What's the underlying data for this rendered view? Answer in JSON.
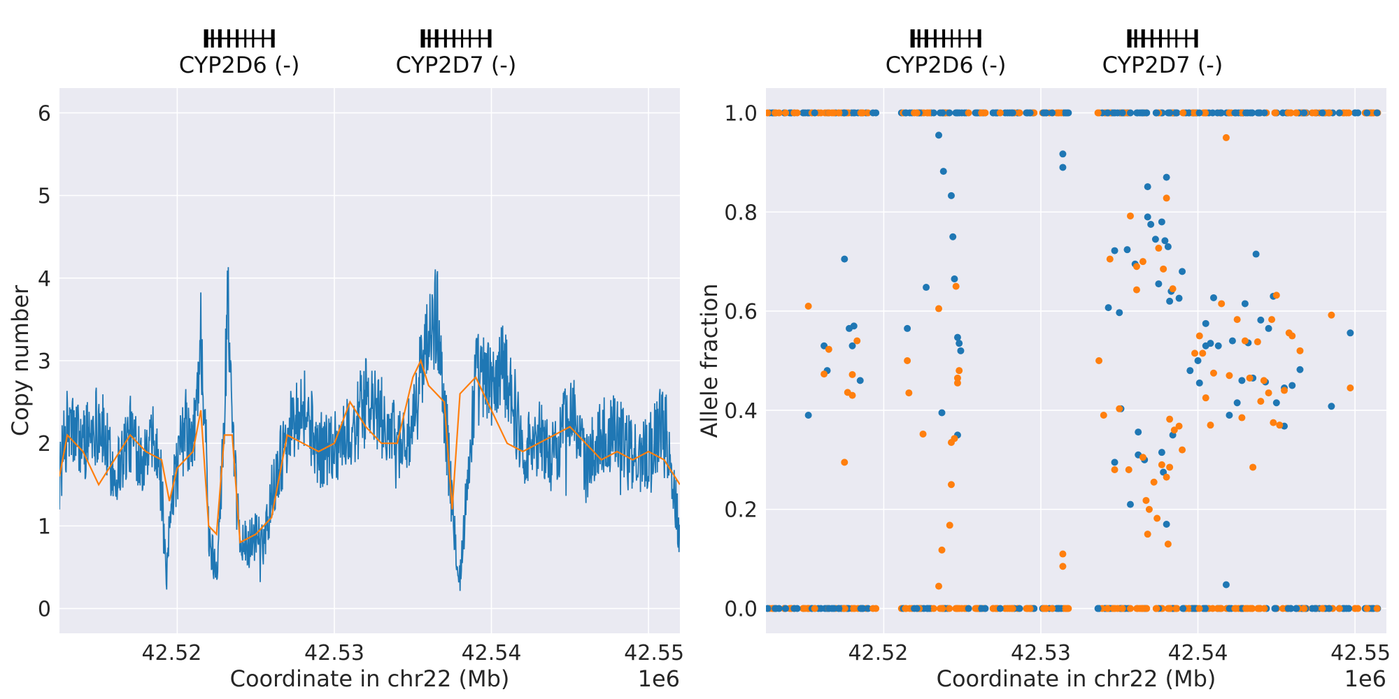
{
  "chart_data": [
    {
      "type": "line",
      "ylabel": "Copy number",
      "xlabel": "Coordinate in chr22 (Mb)",
      "offset_label": "1e6",
      "xlim": [
        42.5125,
        42.552
      ],
      "ylim": [
        -0.3,
        6.3
      ],
      "xticks": [
        42.52,
        42.53,
        42.54,
        42.55
      ],
      "xtick_labels": [
        "42.52",
        "42.53",
        "42.54",
        "42.55"
      ],
      "yticks": [
        0,
        1,
        2,
        3,
        4,
        5,
        6
      ],
      "ytick_labels": [
        "0",
        "1",
        "2",
        "3",
        "4",
        "5",
        "6"
      ],
      "grid": true,
      "genes": [
        {
          "name": "CYP2D6 (-)",
          "start": 42.5217,
          "end": 42.5262
        },
        {
          "name": "CYP2D7 (-)",
          "start": 42.5355,
          "end": 42.54
        }
      ],
      "series": [
        {
          "color": "#1f77b4",
          "x": [
            42.5125,
            42.513,
            42.514,
            42.515,
            42.516,
            42.517,
            42.518,
            42.5185,
            42.519,
            42.5193,
            42.5196,
            42.52,
            42.5205,
            42.521,
            42.5215,
            42.5218,
            42.522,
            42.5225,
            42.523,
            42.5232,
            42.5235,
            42.524,
            42.5245,
            42.525,
            42.5255,
            42.526,
            42.527,
            42.528,
            42.529,
            42.53,
            42.531,
            42.532,
            42.533,
            42.534,
            42.535,
            42.5355,
            42.536,
            42.5365,
            42.537,
            42.5375,
            42.538,
            42.539,
            42.54,
            42.541,
            42.542,
            42.543,
            42.544,
            42.545,
            42.546,
            42.547,
            42.548,
            42.549,
            42.55,
            42.551,
            42.552
          ],
          "y": [
            1.6,
            2.2,
            2.0,
            2.3,
            1.6,
            2.1,
            1.8,
            2.0,
            1.5,
            0.2,
            1.4,
            1.7,
            2.2,
            1.9,
            3.3,
            2.2,
            0.8,
            0.5,
            2.2,
            4.0,
            2.0,
            0.8,
            0.75,
            0.9,
            0.8,
            1.4,
            2.1,
            2.5,
            1.9,
            2.0,
            2.1,
            2.5,
            2.3,
            2.0,
            2.1,
            2.9,
            3.2,
            3.6,
            2.5,
            1.2,
            0.35,
            2.8,
            2.7,
            2.9,
            1.9,
            2.1,
            1.8,
            2.5,
            1.7,
            2.1,
            2.2,
            1.8,
            1.9,
            2.3,
            0.9
          ]
        },
        {
          "color": "#ff7f0e",
          "x": [
            42.5125,
            42.513,
            42.514,
            42.515,
            42.516,
            42.517,
            42.518,
            42.519,
            42.5195,
            42.52,
            42.5205,
            42.521,
            42.5215,
            42.522,
            42.5225,
            42.523,
            42.5235,
            42.524,
            42.525,
            42.526,
            42.527,
            42.528,
            42.529,
            42.53,
            42.531,
            42.532,
            42.533,
            42.534,
            42.535,
            42.5355,
            42.536,
            42.537,
            42.5375,
            42.538,
            42.539,
            42.54,
            42.541,
            42.542,
            42.543,
            42.544,
            42.545,
            42.546,
            42.547,
            42.548,
            42.549,
            42.55,
            42.551,
            42.552
          ],
          "y": [
            1.6,
            2.1,
            1.9,
            1.5,
            1.8,
            2.1,
            1.9,
            1.8,
            1.3,
            1.7,
            1.8,
            1.9,
            2.4,
            1.0,
            0.9,
            2.1,
            2.1,
            0.8,
            0.9,
            1.1,
            2.1,
            2.0,
            1.9,
            2.0,
            2.5,
            2.2,
            2.0,
            2.0,
            2.8,
            3.0,
            2.7,
            2.5,
            1.2,
            2.6,
            2.8,
            2.4,
            2.0,
            1.9,
            2.0,
            2.1,
            2.2,
            2.0,
            1.8,
            1.9,
            1.8,
            1.9,
            1.8,
            1.5
          ]
        }
      ]
    },
    {
      "type": "scatter",
      "ylabel": "Allele fraction",
      "xlabel": "Coordinate in chr22 (Mb)",
      "offset_label": "1e6",
      "xlim": [
        42.5125,
        42.552
      ],
      "ylim": [
        -0.05,
        1.05
      ],
      "xticks": [
        42.52,
        42.53,
        42.54,
        42.55
      ],
      "xtick_labels": [
        "42.52",
        "42.53",
        "42.54",
        "42.55"
      ],
      "yticks": [
        0.0,
        0.2,
        0.4,
        0.6,
        0.8,
        1.0
      ],
      "ytick_labels": [
        "0.0",
        "0.2",
        "0.4",
        "0.6",
        "0.8",
        "1.0"
      ],
      "grid": true,
      "genes": [
        {
          "name": "CYP2D6 (-)",
          "start": 42.5217,
          "end": 42.5262
        },
        {
          "name": "CYP2D7 (-)",
          "start": 42.5355,
          "end": 42.54
        }
      ],
      "band_segments": [
        [
          42.5125,
          42.5195
        ],
        [
          42.521,
          42.5318
        ],
        [
          42.5335,
          42.552
        ]
      ],
      "series": [
        {
          "color": "#1f77b4",
          "points": [
            [
              42.5152,
              0.39
            ],
            [
              42.5162,
              0.53
            ],
            [
              42.5164,
              0.48
            ],
            [
              42.5175,
              0.705
            ],
            [
              42.5178,
              0.565
            ],
            [
              42.518,
              0.53
            ],
            [
              42.5181,
              0.57
            ],
            [
              42.5185,
              0.46
            ],
            [
              42.5215,
              0.565
            ],
            [
              42.5227,
              0.648
            ],
            [
              42.5235,
              0.955
            ],
            [
              42.5237,
              0.395
            ],
            [
              42.5238,
              0.882
            ],
            [
              42.5243,
              0.833
            ],
            [
              42.5244,
              0.75
            ],
            [
              42.5245,
              0.665
            ],
            [
              42.5247,
              0.547
            ],
            [
              42.5248,
              0.535
            ],
            [
              42.5249,
              0.52
            ],
            [
              42.5247,
              0.35
            ],
            [
              42.5314,
              0.917
            ],
            [
              42.5314,
              0.89
            ],
            [
              42.5343,
              0.607
            ],
            [
              42.5347,
              0.722
            ],
            [
              42.5347,
              0.295
            ],
            [
              42.535,
              0.597
            ],
            [
              42.5351,
              0.403
            ],
            [
              42.5355,
              0.724
            ],
            [
              42.5357,
              0.21
            ],
            [
              42.536,
              0.695
            ],
            [
              42.5362,
              0.356
            ],
            [
              42.5362,
              0.31
            ],
            [
              42.5366,
              0.3
            ],
            [
              42.5368,
              0.851
            ],
            [
              42.5368,
              0.79
            ],
            [
              42.537,
              0.775
            ],
            [
              42.5373,
              0.745
            ],
            [
              42.5375,
              0.655
            ],
            [
              42.5377,
              0.78
            ],
            [
              42.5377,
              0.315
            ],
            [
              42.5378,
              0.275
            ],
            [
              42.5379,
              0.742
            ],
            [
              42.538,
              0.87
            ],
            [
              42.538,
              0.17
            ],
            [
              42.5381,
              0.73
            ],
            [
              42.5382,
              0.62
            ],
            [
              42.5383,
              0.64
            ],
            [
              42.5384,
              0.35
            ],
            [
              42.5388,
              0.626
            ],
            [
              42.539,
              0.68
            ],
            [
              42.5395,
              0.48
            ],
            [
              42.54,
              0.5
            ],
            [
              42.5401,
              0.455
            ],
            [
              42.5405,
              0.53
            ],
            [
              42.5405,
              0.575
            ],
            [
              42.5408,
              0.535
            ],
            [
              42.541,
              0.627
            ],
            [
              42.5413,
              0.53
            ],
            [
              42.5418,
              0.048
            ],
            [
              42.542,
              0.39
            ],
            [
              42.5422,
              0.54
            ],
            [
              42.5425,
              0.415
            ],
            [
              42.5428,
              0.46
            ],
            [
              42.543,
              0.615
            ],
            [
              42.5432,
              0.536
            ],
            [
              42.5435,
              0.465
            ],
            [
              42.5437,
              0.715
            ],
            [
              42.544,
              0.582
            ],
            [
              42.5443,
              0.457
            ],
            [
              42.5445,
              0.565
            ],
            [
              42.5448,
              0.63
            ],
            [
              42.545,
              0.415
            ],
            [
              42.5455,
              0.445
            ],
            [
              42.5455,
              0.368
            ],
            [
              42.546,
              0.45
            ],
            [
              42.5465,
              0.482
            ],
            [
              42.5485,
              0.408
            ],
            [
              42.5497,
              0.556
            ]
          ]
        },
        {
          "color": "#ff7f0e",
          "points": [
            [
              42.5152,
              0.61
            ],
            [
              42.5162,
              0.473
            ],
            [
              42.5165,
              0.523
            ],
            [
              42.5175,
              0.295
            ],
            [
              42.5177,
              0.436
            ],
            [
              42.518,
              0.472
            ],
            [
              42.518,
              0.43
            ],
            [
              42.5183,
              0.54
            ],
            [
              42.5215,
              0.5
            ],
            [
              42.5216,
              0.435
            ],
            [
              42.5225,
              0.352
            ],
            [
              42.5235,
              0.605
            ],
            [
              42.5235,
              0.045
            ],
            [
              42.5237,
              0.118
            ],
            [
              42.5242,
              0.168
            ],
            [
              42.5243,
              0.25
            ],
            [
              42.5243,
              0.335
            ],
            [
              42.5245,
              0.343
            ],
            [
              42.5246,
              0.65
            ],
            [
              42.5248,
              0.48
            ],
            [
              42.5247,
              0.465
            ],
            [
              42.5247,
              0.455
            ],
            [
              42.5314,
              0.11
            ],
            [
              42.5314,
              0.085
            ],
            [
              42.5337,
              0.5
            ],
            [
              42.534,
              0.39
            ],
            [
              42.5344,
              0.705
            ],
            [
              42.5347,
              0.28
            ],
            [
              42.535,
              0.403
            ],
            [
              42.5356,
              0.28
            ],
            [
              42.5357,
              0.792
            ],
            [
              42.5361,
              0.69
            ],
            [
              42.5361,
              0.643
            ],
            [
              42.5365,
              0.7
            ],
            [
              42.5365,
              0.305
            ],
            [
              42.5367,
              0.218
            ],
            [
              42.5368,
              0.15
            ],
            [
              42.5369,
              0.2
            ],
            [
              42.5372,
              0.255
            ],
            [
              42.5374,
              0.182
            ],
            [
              42.5375,
              0.727
            ],
            [
              42.5377,
              0.29
            ],
            [
              42.5378,
              0.685
            ],
            [
              42.538,
              0.828
            ],
            [
              42.538,
              0.265
            ],
            [
              42.5381,
              0.13
            ],
            [
              42.5382,
              0.382
            ],
            [
              42.5382,
              0.285
            ],
            [
              42.5384,
              0.645
            ],
            [
              42.5385,
              0.36
            ],
            [
              42.5388,
              0.368
            ],
            [
              42.539,
              0.32
            ],
            [
              42.5398,
              0.515
            ],
            [
              42.5401,
              0.55
            ],
            [
              42.5403,
              0.515
            ],
            [
              42.5405,
              0.425
            ],
            [
              42.5408,
              0.37
            ],
            [
              42.541,
              0.475
            ],
            [
              42.5415,
              0.615
            ],
            [
              42.5418,
              0.95
            ],
            [
              42.542,
              0.47
            ],
            [
              42.5425,
              0.583
            ],
            [
              42.5428,
              0.385
            ],
            [
              42.543,
              0.54
            ],
            [
              42.5433,
              0.465
            ],
            [
              42.5435,
              0.285
            ],
            [
              42.5438,
              0.538
            ],
            [
              42.544,
              0.418
            ],
            [
              42.5442,
              0.46
            ],
            [
              42.5445,
              0.435
            ],
            [
              42.5447,
              0.583
            ],
            [
              42.5448,
              0.375
            ],
            [
              42.545,
              0.632
            ],
            [
              42.5452,
              0.37
            ],
            [
              42.5455,
              0.44
            ],
            [
              42.5458,
              0.556
            ],
            [
              42.546,
              0.55
            ],
            [
              42.5465,
              0.52
            ],
            [
              42.5485,
              0.592
            ],
            [
              42.5497,
              0.445
            ]
          ]
        }
      ]
    }
  ]
}
